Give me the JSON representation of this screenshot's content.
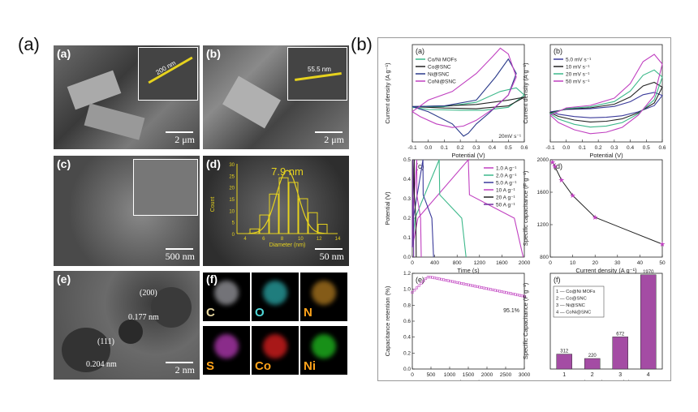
{
  "figure": {
    "label_a": "(a)",
    "label_b": "(b)"
  },
  "left_panels": {
    "a": {
      "label": "(a)",
      "scale": "2 μm",
      "inset_measure": "200 nm"
    },
    "b": {
      "label": "(b)",
      "scale": "2 μm",
      "inset_measure": "55.5 nm"
    },
    "c": {
      "label": "(c)",
      "scale": "500 nm"
    },
    "d": {
      "label": "(d)",
      "scale": "50 nm",
      "hist_title": "7.9 nm",
      "hist_xlabel": "Diameter (nm)",
      "hist_ylabel": "Count",
      "hist_yticks": [
        "0",
        "5",
        "10",
        "15",
        "20",
        "25",
        "30"
      ],
      "hist_xticks": [
        "4",
        "6",
        "8",
        "10",
        "12",
        "14"
      ]
    },
    "e": {
      "label": "(e)",
      "scale": "2 nm",
      "ann1": "(200)",
      "ann2": "0.177 nm",
      "ann3": "(111)",
      "ann4": "0.204 nm"
    },
    "f": {
      "label": "(f)",
      "elements": [
        "C",
        "O",
        "N",
        "S",
        "Co",
        "Ni"
      ],
      "colors": [
        "#e8d8a0",
        "#4fd6d6",
        "#ffa31a",
        "#ffa31a",
        "#ffa31a",
        "#ffa31a"
      ],
      "map_colors": [
        "#9a9aa0",
        "#2aa7a7",
        "#b07a20",
        "#b83bb8",
        "#e02020",
        "#20c020"
      ]
    }
  },
  "chart_data": [
    {
      "id": "a",
      "type": "line",
      "label": "(a)",
      "xlabel": "Potential (V)",
      "ylabel": "Current density (A g⁻¹)",
      "xlim": [
        -0.1,
        0.6
      ],
      "ylim": [
        -50,
        85
      ],
      "xticks": [
        "-0.1",
        "0.0",
        "0.1",
        "0.2",
        "0.3",
        "0.4",
        "0.5",
        "0.6"
      ],
      "annotation": "20mV s⁻¹",
      "series": [
        {
          "name": "Co/Ni MOFs",
          "color": "#3cb88a",
          "x": [
            -0.1,
            0.1,
            0.3,
            0.45,
            0.55,
            0.6,
            0.5,
            0.35,
            0.2,
            0.0,
            -0.1
          ],
          "y": [
            -2,
            -1,
            5,
            20,
            25,
            15,
            -2,
            -6,
            -6,
            -5,
            -2
          ]
        },
        {
          "name": "Co@SNC",
          "color": "#222222",
          "x": [
            -0.1,
            0.1,
            0.3,
            0.5,
            0.6,
            0.5,
            0.3,
            0.1,
            -0.1
          ],
          "y": [
            -1,
            0,
            2,
            8,
            12,
            0,
            -4,
            -3,
            -1
          ]
        },
        {
          "name": "Ni@SNC",
          "color": "#2a3a8a",
          "x": [
            -0.1,
            0.1,
            0.3,
            0.42,
            0.5,
            0.55,
            0.5,
            0.38,
            0.3,
            0.25,
            0.22,
            0.15,
            0.0,
            -0.1
          ],
          "y": [
            -1,
            0,
            8,
            40,
            65,
            45,
            15,
            -10,
            -25,
            -38,
            -42,
            -25,
            -8,
            -1
          ]
        },
        {
          "name": "CoNi@SNC",
          "color": "#c040c0",
          "x": [
            -0.1,
            0.0,
            0.15,
            0.3,
            0.4,
            0.45,
            0.5,
            0.55,
            0.5,
            0.4,
            0.3,
            0.22,
            0.15,
            0.05,
            -0.05,
            -0.1
          ],
          "y": [
            -8,
            8,
            20,
            45,
            68,
            80,
            72,
            40,
            15,
            -5,
            -20,
            -28,
            -30,
            -25,
            -15,
            -8
          ]
        }
      ]
    },
    {
      "id": "b",
      "type": "line",
      "label": "(b)",
      "xlabel": "Potential (V)",
      "ylabel": "Current density (A g⁻¹)",
      "xlim": [
        -0.1,
        0.6
      ],
      "ylim": [
        -65,
        135
      ],
      "xticks": [
        "-0.1",
        "0.0",
        "0.1",
        "0.2",
        "0.3",
        "0.4",
        "0.5",
        "0.6"
      ],
      "series": [
        {
          "name": "5.0 mV s⁻¹",
          "color": "#3a3a9a",
          "scale": 0.32
        },
        {
          "name": "10 mV s⁻¹",
          "color": "#222222",
          "scale": 0.5
        },
        {
          "name": "20 mV s⁻¹",
          "color": "#3cb88a",
          "scale": 0.72
        },
        {
          "name": "50 mV s⁻¹",
          "color": "#c040c0",
          "scale": 1.0
        }
      ],
      "base_shape": {
        "x": [
          -0.1,
          0.0,
          0.15,
          0.3,
          0.4,
          0.48,
          0.55,
          0.6,
          0.55,
          0.45,
          0.35,
          0.25,
          0.15,
          0.05,
          -0.05,
          -0.1
        ],
        "y": [
          -10,
          5,
          10,
          25,
          55,
          100,
          115,
          95,
          30,
          -10,
          -35,
          -45,
          -48,
          -40,
          -25,
          -10
        ]
      }
    },
    {
      "id": "c",
      "type": "line",
      "label": "(c)",
      "xlabel": "Time (s)",
      "ylabel": "Potential (V)",
      "xlim": [
        0,
        2000
      ],
      "ylim": [
        0,
        0.5
      ],
      "xticks": [
        "0",
        "400",
        "800",
        "1200",
        "1600",
        "2000"
      ],
      "yticks": [
        "0.0",
        "0.1",
        "0.2",
        "0.3",
        "0.4",
        "0.5"
      ],
      "series": [
        {
          "name": "1.0 A g⁻¹",
          "color": "#c040c0",
          "charge_end": 1000,
          "discharge_end": 1980
        },
        {
          "name": "2.0 A g⁻¹",
          "color": "#3cb88a",
          "charge_end": 480,
          "discharge_end": 960
        },
        {
          "name": "5.0 A g⁻¹",
          "color": "#3a3a9a",
          "charge_end": 190,
          "discharge_end": 380
        },
        {
          "name": "10 A g⁻¹",
          "color": "#c040c0",
          "charge_end": 80,
          "discharge_end": 160
        },
        {
          "name": "20 A g⁻¹",
          "color": "#222222",
          "charge_end": 35,
          "discharge_end": 70
        },
        {
          "name": "50 A g⁻¹",
          "color": "#7030a0",
          "charge_end": 12,
          "discharge_end": 24
        }
      ]
    },
    {
      "id": "d",
      "type": "line",
      "label": "(d)",
      "xlabel": "Current density (A g⁻¹)",
      "ylabel": "Specific capacitance (F g⁻¹)",
      "xlim": [
        0,
        50
      ],
      "ylim": [
        800,
        2000
      ],
      "xticks": [
        "0",
        "10",
        "20",
        "30",
        "40",
        "50"
      ],
      "yticks": [
        "800",
        "1200",
        "1600",
        "2000"
      ],
      "x": [
        1,
        2,
        5,
        10,
        20,
        50
      ],
      "y": [
        1970,
        1920,
        1750,
        1560,
        1290,
        960
      ],
      "color": "#c040c0"
    },
    {
      "id": "e",
      "type": "scatter",
      "label": "(e)",
      "xlabel": "Cycle number",
      "ylabel": "Capacitance retention (%)",
      "xlim": [
        0,
        3000
      ],
      "ylim": [
        0,
        1.25
      ],
      "xticks": [
        "0",
        "500",
        "1000",
        "1500",
        "2000",
        "2500",
        "3000"
      ],
      "yticks": [
        "0.0",
        "0.2",
        "0.4",
        "0.6",
        "0.8",
        "1.0",
        "1.2"
      ],
      "annotation": "95.1%",
      "color": "#c040c0"
    },
    {
      "id": "f",
      "type": "bar",
      "label": "(f)",
      "xlabel": "Electrode Materials",
      "ylabel": "Specific Capacitance (F g⁻¹)",
      "categories": [
        "1",
        "2",
        "3",
        "4"
      ],
      "values": [
        312,
        220,
        672,
        1970
      ],
      "value_labels": [
        "312",
        "220",
        "672",
        "1970"
      ],
      "ylim": [
        0,
        2000
      ],
      "legend": [
        "1 — Co@Ni MOFs",
        "2 — Co@SNC",
        "3 — Ni@SNC",
        "4 — CoNi@SNC"
      ],
      "color": "#a44ca4"
    }
  ]
}
